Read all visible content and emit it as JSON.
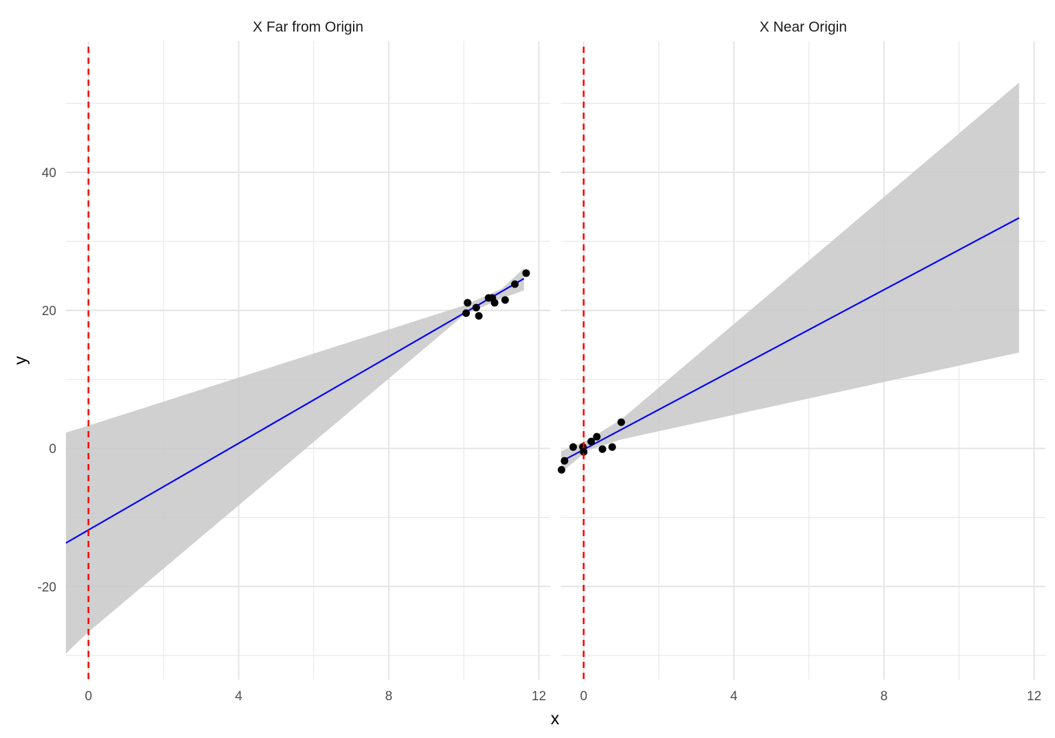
{
  "chart_data": {
    "type": "scatter",
    "xlabel": "x",
    "ylabel": "y",
    "xlim": [
      -0.6,
      12.3
    ],
    "ylim": [
      -33.5,
      59.0
    ],
    "x_ticks": [
      0,
      4,
      8,
      12
    ],
    "x_tick_labels": [
      "0",
      "4",
      "8",
      "12"
    ],
    "y_ticks": [
      -20,
      0,
      20,
      40
    ],
    "y_tick_labels": [
      "-20",
      "0",
      "20",
      "40"
    ],
    "grid": true,
    "vline_x": 0,
    "colors": {
      "points": "#000000",
      "fit_line": "#0000ff",
      "ribbon": "#c8c8c8",
      "vline": "#ff0000",
      "grid": "#e6e6e6"
    },
    "panels": [
      {
        "title": "X Far from Origin",
        "points": [
          {
            "x": 10.06,
            "y": 19.6
          },
          {
            "x": 10.1,
            "y": 21.1
          },
          {
            "x": 10.33,
            "y": 20.4
          },
          {
            "x": 10.4,
            "y": 19.2
          },
          {
            "x": 10.66,
            "y": 21.8
          },
          {
            "x": 10.76,
            "y": 21.8
          },
          {
            "x": 10.82,
            "y": 21.1
          },
          {
            "x": 11.1,
            "y": 21.5
          },
          {
            "x": 11.36,
            "y": 23.8
          },
          {
            "x": 11.66,
            "y": 25.4
          }
        ],
        "fit": [
          {
            "x": -0.6,
            "y": -13.7
          },
          {
            "x": 11.6,
            "y": 24.6
          }
        ],
        "band": [
          {
            "x": -0.6,
            "lo": -29.7,
            "hi": 2.3
          },
          {
            "x": 0,
            "lo": -26.6,
            "hi": 3.3
          },
          {
            "x": 10.0,
            "lo": 19.3,
            "hi": 20.7
          },
          {
            "x": 11.0,
            "lo": 21.7,
            "hi": 23.1
          },
          {
            "x": 11.6,
            "lo": 22.9,
            "hi": 26.1
          }
        ]
      },
      {
        "title": "X Near Origin",
        "points": [
          {
            "x": -0.59,
            "y": -3.1
          },
          {
            "x": -0.51,
            "y": -1.8
          },
          {
            "x": -0.28,
            "y": 0.2
          },
          {
            "x": -0.02,
            "y": 0.2
          },
          {
            "x": 0.0,
            "y": -0.5
          },
          {
            "x": 0.2,
            "y": 1.0
          },
          {
            "x": 0.35,
            "y": 1.7
          },
          {
            "x": 0.5,
            "y": -0.1
          },
          {
            "x": 0.76,
            "y": 0.2
          },
          {
            "x": 1.0,
            "y": 3.8
          }
        ],
        "fit": [
          {
            "x": -0.6,
            "y": -1.9
          },
          {
            "x": 11.6,
            "y": 33.4
          }
        ],
        "band": [
          {
            "x": -0.6,
            "lo": -3.5,
            "hi": -0.4
          },
          {
            "x": 0.1,
            "lo": -0.3,
            "hi": 1.2
          },
          {
            "x": 1.0,
            "lo": 1.3,
            "hi": 4.2
          },
          {
            "x": 11.6,
            "lo": 13.9,
            "hi": 53.0
          }
        ]
      }
    ]
  }
}
